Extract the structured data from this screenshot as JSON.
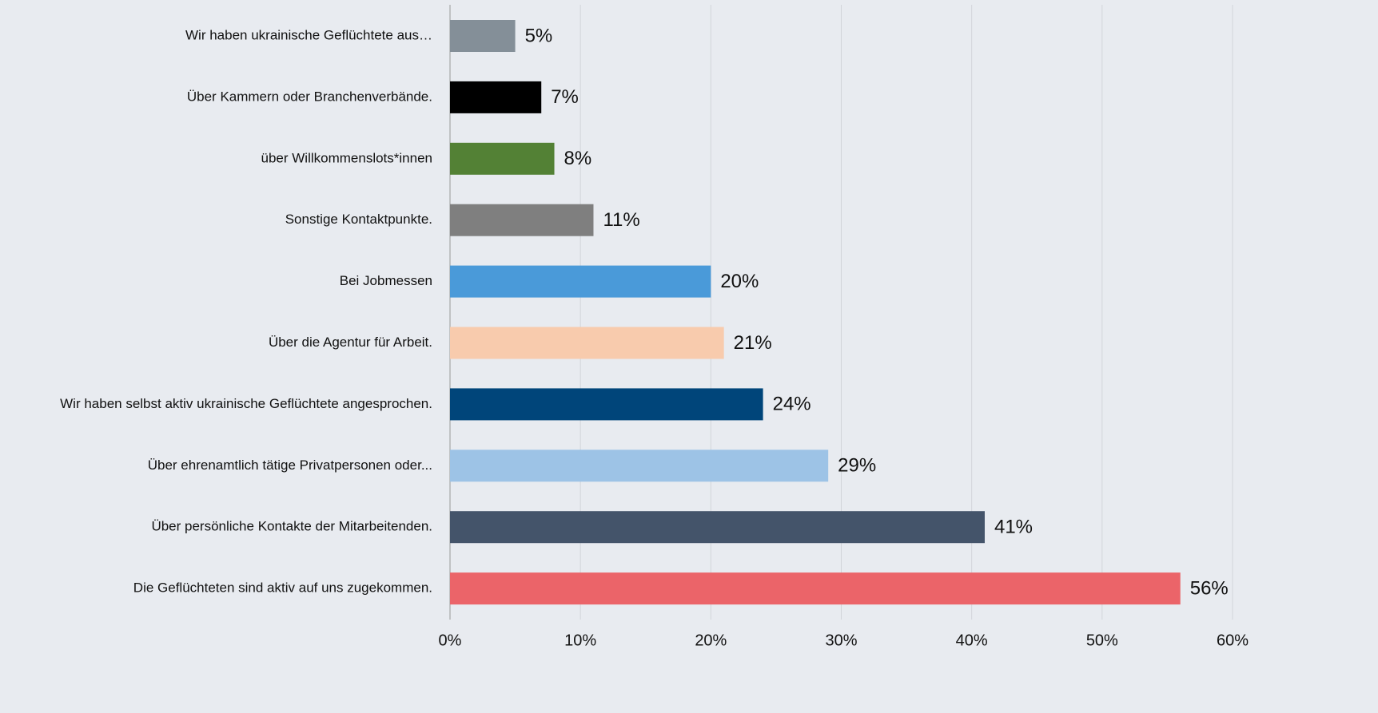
{
  "chart_data": {
    "type": "hbar",
    "categories": [
      "Wir haben ukrainische Geflüchtete aus…",
      "Über Kammern oder Branchenverbände.",
      "über Willkommenslots*innen",
      "Sonstige Kontaktpunkte.",
      "Bei Jobmessen",
      "Über die Agentur für Arbeit.",
      "Wir haben selbst aktiv ukrainische Geflüchtete angesprochen.",
      "Über ehrenamtlich tätige Privatpersonen oder...",
      "Über persönliche Kontakte der Mitarbeitenden.",
      "Die Geflüchteten sind aktiv auf uns zugekommen."
    ],
    "values": [
      5,
      7,
      8,
      11,
      20,
      21,
      24,
      29,
      41,
      56
    ],
    "value_labels": [
      "5%",
      "7%",
      "8%",
      "11%",
      "20%",
      "21%",
      "24%",
      "29%",
      "41%",
      "56%"
    ],
    "colors": [
      "#848f98",
      "#000000",
      "#538135",
      "#7f7f7f",
      "#4a9ad9",
      "#f8cbad",
      "#00457a",
      "#9dc3e6",
      "#44546a",
      "#eb6469"
    ],
    "xlim": [
      0,
      60
    ],
    "xticks": [
      {
        "value": 0,
        "label": "0%"
      },
      {
        "value": 10,
        "label": "10%"
      },
      {
        "value": 20,
        "label": "20%"
      },
      {
        "value": 30,
        "label": "30%"
      },
      {
        "value": 40,
        "label": "40%"
      },
      {
        "value": 50,
        "label": "50%"
      },
      {
        "value": 60,
        "label": "60%"
      }
    ],
    "grid": true
  }
}
